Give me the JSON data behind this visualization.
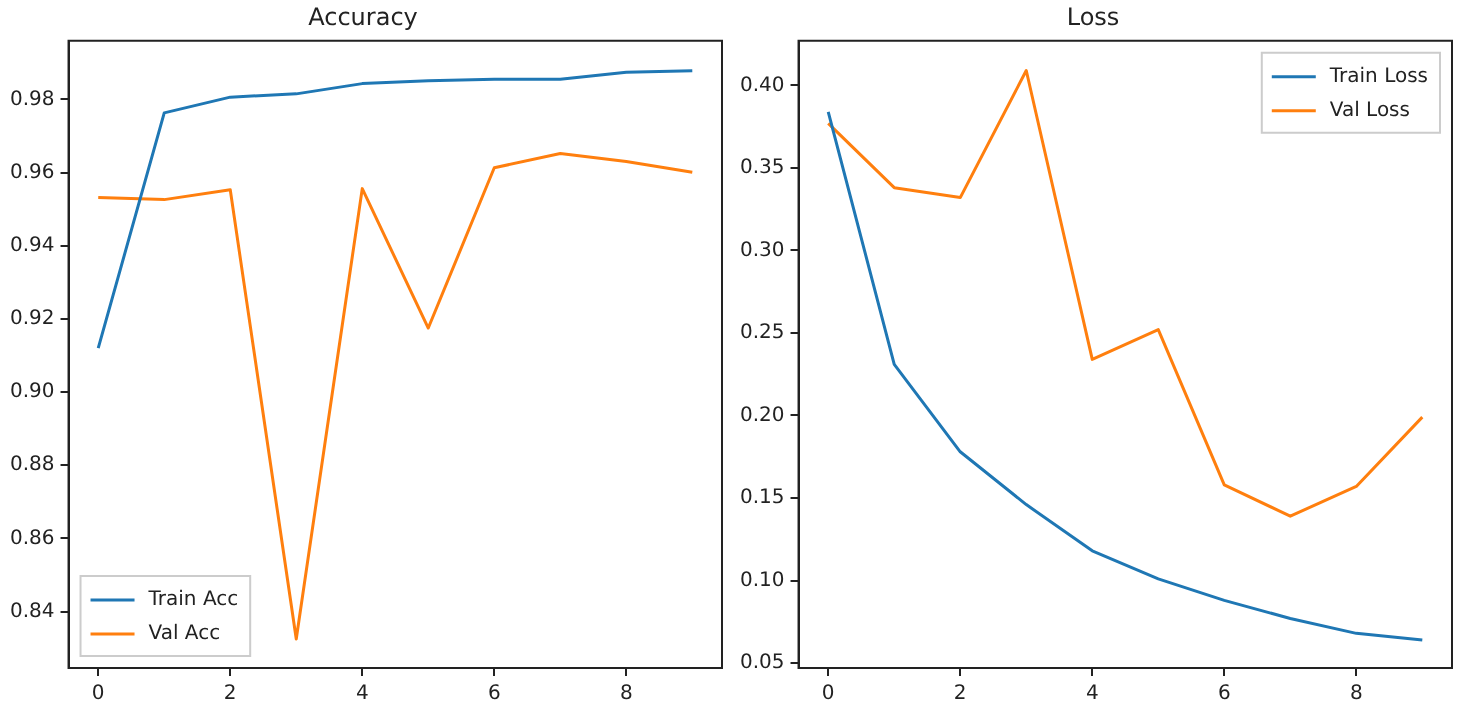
{
  "chart_data": [
    {
      "type": "line",
      "title": "Accuracy",
      "x": [
        0,
        1,
        2,
        3,
        4,
        5,
        6,
        7,
        8,
        9
      ],
      "xlim": [
        -0.45,
        9.45
      ],
      "xticks": [
        0,
        2,
        4,
        6,
        8
      ],
      "ylim": [
        0.8246,
        0.996
      ],
      "yticks": [
        {
          "value": 0.84,
          "label": "0.84"
        },
        {
          "value": 0.86,
          "label": "0.86"
        },
        {
          "value": 0.88,
          "label": "0.88"
        },
        {
          "value": 0.9,
          "label": "0.90"
        },
        {
          "value": 0.92,
          "label": "0.92"
        },
        {
          "value": 0.94,
          "label": "0.94"
        },
        {
          "value": 0.96,
          "label": "0.96"
        },
        {
          "value": 0.98,
          "label": "0.98"
        }
      ],
      "grid": false,
      "legend": "bottom left",
      "series": [
        {
          "name": "Train Acc",
          "color": "#1f77b4",
          "values": [
            0.912,
            0.9763,
            0.9806,
            0.9815,
            0.9843,
            0.9851,
            0.9855,
            0.9855,
            0.9874,
            0.9878
          ]
        },
        {
          "name": "Val Acc",
          "color": "#ff7f0e",
          "values": [
            0.9532,
            0.9526,
            0.9553,
            0.8325,
            0.9556,
            0.9175,
            0.9613,
            0.9652,
            0.963,
            0.9601
          ]
        }
      ]
    },
    {
      "type": "line",
      "title": "Loss",
      "x": [
        0,
        1,
        2,
        3,
        4,
        5,
        6,
        7,
        8,
        9
      ],
      "xlim": [
        -0.45,
        9.45
      ],
      "xticks": [
        0,
        2,
        4,
        6,
        8
      ],
      "ylim": [
        0.047,
        0.427
      ],
      "yticks": [
        {
          "value": 0.05,
          "label": "0.05"
        },
        {
          "value": 0.1,
          "label": "0.10"
        },
        {
          "value": 0.15,
          "label": "0.15"
        },
        {
          "value": 0.2,
          "label": "0.20"
        },
        {
          "value": 0.25,
          "label": "0.25"
        },
        {
          "value": 0.3,
          "label": "0.30"
        },
        {
          "value": 0.35,
          "label": "0.35"
        },
        {
          "value": 0.4,
          "label": "0.40"
        }
      ],
      "grid": false,
      "legend": "top right",
      "series": [
        {
          "name": "Train Loss",
          "color": "#1f77b4",
          "values": [
            0.384,
            0.231,
            0.178,
            0.146,
            0.118,
            0.101,
            0.088,
            0.077,
            0.068,
            0.064
          ]
        },
        {
          "name": "Val Loss",
          "color": "#ff7f0e",
          "values": [
            0.377,
            0.338,
            0.332,
            0.409,
            0.234,
            0.252,
            0.158,
            0.139,
            0.157,
            0.199
          ]
        }
      ]
    }
  ]
}
